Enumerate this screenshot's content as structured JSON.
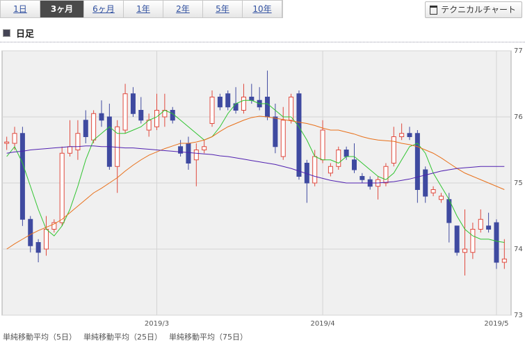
{
  "tabs": [
    "1日",
    "3ヶ月",
    "6ヶ月",
    "1年",
    "2年",
    "5年",
    "10年"
  ],
  "button": "テクニカルチャート",
  "heading": "日足",
  "chart_data": {
    "type": "candlestick",
    "categories": [
      null,
      null,
      null,
      null,
      null,
      null,
      null,
      null,
      null,
      null,
      null,
      null,
      null,
      null,
      null,
      null,
      null,
      null,
      null,
      "2019/3",
      null,
      null,
      null,
      null,
      null,
      null,
      null,
      null,
      null,
      null,
      null,
      null,
      null,
      null,
      null,
      null,
      null,
      null,
      null,
      null,
      "2019/4",
      null,
      null,
      null,
      null,
      null,
      null,
      null,
      null,
      null,
      null,
      null,
      null,
      null,
      null,
      null,
      null,
      null,
      null,
      null,
      null,
      null,
      "2019/5",
      null
    ],
    "open": [
      75.6,
      75.6,
      75.75,
      74.45,
      74.1,
      74.0,
      74.3,
      74.4,
      75.45,
      75.5,
      75.95,
      75.65,
      76.05,
      76.0,
      75.25,
      75.8,
      76.35,
      76.1,
      75.8,
      75.85,
      76.0,
      76.1,
      75.55,
      75.6,
      75.35,
      75.5,
      75.9,
      76.3,
      76.35,
      76.2,
      76.1,
      76.3,
      76.25,
      76.3,
      76.0,
      75.4,
      75.95,
      76.35,
      75.3,
      75.0,
      75.35,
      75.15,
      75.25,
      75.5,
      75.35,
      75.1,
      75.05,
      74.95,
      75.0,
      75.3,
      75.7,
      75.75,
      75.75,
      75.2,
      74.85,
      74.75,
      74.75,
      74.35,
      73.95,
      73.95,
      74.3,
      74.35,
      74.4,
      73.8
    ],
    "high": [
      75.7,
      75.85,
      75.85,
      74.5,
      74.15,
      74.5,
      74.45,
      75.55,
      75.95,
      75.95,
      76.1,
      76.1,
      76.25,
      76.2,
      75.95,
      76.5,
      76.45,
      76.3,
      76.05,
      76.35,
      76.35,
      76.15,
      75.65,
      75.7,
      75.6,
      75.65,
      76.4,
      76.35,
      76.4,
      76.45,
      76.5,
      76.5,
      76.45,
      76.7,
      76.2,
      76.15,
      76.35,
      76.4,
      75.35,
      75.5,
      75.95,
      75.3,
      75.55,
      75.55,
      75.6,
      75.15,
      75.1,
      75.1,
      75.3,
      75.85,
      75.9,
      75.85,
      75.8,
      75.25,
      74.95,
      74.85,
      74.85,
      74.35,
      74.6,
      74.4,
      74.6,
      74.55,
      74.45,
      74.15
    ],
    "low": [
      75.5,
      75.5,
      74.35,
      73.95,
      73.8,
      73.9,
      74.25,
      74.35,
      75.4,
      75.35,
      75.6,
      75.6,
      75.85,
      75.2,
      74.85,
      75.75,
      76.0,
      75.9,
      75.7,
      75.8,
      75.85,
      75.9,
      75.4,
      75.2,
      74.95,
      75.45,
      75.85,
      76.1,
      76.1,
      76.05,
      76.05,
      76.2,
      76.1,
      75.95,
      75.45,
      75.35,
      75.9,
      75.05,
      74.7,
      74.95,
      75.3,
      75.1,
      75.2,
      75.35,
      75.15,
      75.0,
      74.9,
      74.75,
      74.95,
      75.25,
      75.65,
      75.65,
      74.7,
      74.7,
      74.8,
      74.7,
      74.1,
      73.9,
      73.6,
      73.85,
      74.25,
      74.25,
      73.7,
      73.7
    ],
    "close": [
      75.62,
      75.75,
      74.45,
      74.05,
      73.95,
      74.3,
      74.4,
      75.45,
      75.55,
      75.75,
      75.7,
      76.05,
      75.95,
      75.25,
      75.85,
      76.35,
      76.05,
      75.95,
      75.95,
      76.1,
      76.1,
      75.95,
      75.45,
      75.3,
      75.5,
      75.55,
      76.3,
      76.15,
      76.15,
      76.1,
      76.3,
      76.25,
      76.15,
      76.0,
      75.55,
      75.95,
      76.3,
      75.1,
      75.0,
      75.4,
      75.8,
      75.25,
      75.5,
      75.4,
      75.2,
      75.05,
      74.95,
      75.05,
      75.25,
      75.7,
      75.75,
      75.7,
      74.9,
      74.8,
      74.9,
      74.8,
      74.4,
      73.95,
      74.0,
      74.3,
      74.45,
      74.3,
      73.8,
      73.85
    ],
    "up_color": "#e0483c",
    "down_color": "#3f4aa0",
    "lines": [
      {
        "name": "単純移動平均（5日）",
        "color": "#2fc42f",
        "values": [
          75.4,
          75.55,
          75.3,
          74.95,
          74.6,
          74.3,
          74.2,
          74.35,
          74.6,
          74.95,
          75.35,
          75.65,
          75.75,
          75.85,
          75.75,
          75.75,
          75.8,
          75.85,
          75.95,
          76.0,
          76.1,
          76.05,
          75.95,
          75.85,
          75.75,
          75.65,
          75.7,
          75.85,
          76.05,
          76.2,
          76.25,
          76.25,
          76.2,
          76.2,
          76.1,
          76.0,
          76.0,
          75.85,
          75.65,
          75.4,
          75.35,
          75.35,
          75.3,
          75.4,
          75.4,
          75.3,
          75.2,
          75.1,
          75.05,
          75.15,
          75.35,
          75.55,
          75.6,
          75.45,
          75.15,
          74.95,
          74.75,
          74.5,
          74.3,
          74.2,
          74.15,
          74.15,
          74.12,
          74.1
        ]
      },
      {
        "name": "単純移動平均（25日）",
        "color": "#e8701a",
        "values": [
          74.0,
          74.08,
          74.15,
          74.22,
          74.28,
          74.33,
          74.38,
          74.45,
          74.55,
          74.65,
          74.75,
          74.85,
          74.92,
          75.0,
          75.08,
          75.18,
          75.27,
          75.35,
          75.42,
          75.47,
          75.52,
          75.56,
          75.6,
          75.6,
          75.62,
          75.65,
          75.7,
          75.78,
          75.85,
          75.9,
          75.95,
          75.99,
          76.01,
          76.0,
          75.98,
          75.96,
          75.94,
          75.92,
          75.9,
          75.87,
          75.83,
          75.8,
          75.8,
          75.77,
          75.74,
          75.7,
          75.67,
          75.65,
          75.64,
          75.63,
          75.6,
          75.58,
          75.55,
          75.5,
          75.45,
          75.38,
          75.3,
          75.22,
          75.15,
          75.1,
          75.05,
          75.0,
          74.95,
          74.9
        ]
      },
      {
        "name": "単純移動平均（75日）",
        "color": "#5020b0",
        "values": [
          75.45,
          75.47,
          75.48,
          75.5,
          75.51,
          75.52,
          75.53,
          75.54,
          75.55,
          75.55,
          75.56,
          75.56,
          75.55,
          75.55,
          75.54,
          75.53,
          75.53,
          75.52,
          75.51,
          75.5,
          75.49,
          75.48,
          75.47,
          75.46,
          75.45,
          75.44,
          75.43,
          75.41,
          75.4,
          75.38,
          75.36,
          75.34,
          75.32,
          75.3,
          75.28,
          75.25,
          75.22,
          75.18,
          75.14,
          75.1,
          75.07,
          75.04,
          75.02,
          75.0,
          75.0,
          75.0,
          75.0,
          75.0,
          75.01,
          75.02,
          75.04,
          75.06,
          75.09,
          75.12,
          75.15,
          75.18,
          75.2,
          75.22,
          75.23,
          75.24,
          75.25,
          75.25,
          75.25,
          75.25
        ]
      }
    ],
    "ylim": [
      73,
      77
    ],
    "yticks": [
      73,
      74,
      75,
      76,
      77
    ],
    "grid": true
  }
}
